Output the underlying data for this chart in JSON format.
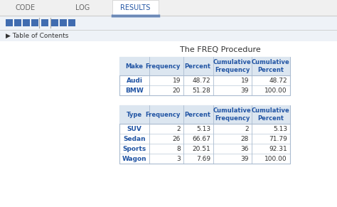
{
  "title": "The FREQ Procedure",
  "tab_labels": [
    "CODE",
    "LOG",
    "RESULTS"
  ],
  "active_tab": "RESULTS",
  "table_of_contents": "Table of Contents",
  "table1": {
    "headers": [
      "Make",
      "Frequency",
      "Percent",
      "Cumulative\nFrequency",
      "Cumulative\nPercent"
    ],
    "rows": [
      [
        "Audi",
        "19",
        "48.72",
        "19",
        "48.72"
      ],
      [
        "BMW",
        "20",
        "51.28",
        "39",
        "100.00"
      ]
    ]
  },
  "table2": {
    "headers": [
      "Type",
      "Frequency",
      "Percent",
      "Cumulative\nFrequency",
      "Cumulative\nPercent"
    ],
    "rows": [
      [
        "SUV",
        "2",
        "5.13",
        "2",
        "5.13"
      ],
      [
        "Sedan",
        "26",
        "66.67",
        "28",
        "71.79"
      ],
      [
        "Sports",
        "8",
        "20.51",
        "36",
        "92.31"
      ],
      [
        "Wagon",
        "3",
        "7.69",
        "39",
        "100.00"
      ]
    ]
  },
  "bg_color": "#eef2f7",
  "table_bg": "#ffffff",
  "header_bg": "#dce6f0",
  "border_color": "#aabbd0",
  "header_text_color": "#2255a4",
  "data_text_color": "#333333",
  "tab_active_color": "#2255a4",
  "tab_inactive_color": "#666666",
  "toolbar_color": "#2255a4",
  "toc_color": "#333333",
  "title_color": "#333333",
  "tab_bar_bg": "#f0f0f0",
  "active_tab_bg": "#ffffff",
  "tab_underline_color": "#2255a4"
}
